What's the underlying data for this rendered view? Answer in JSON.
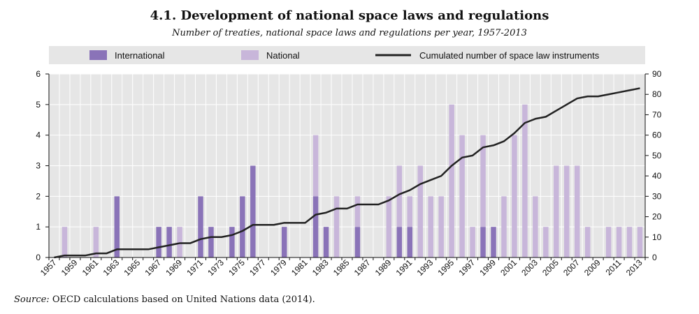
{
  "title": "4.1.  Development of national space laws and regulations",
  "subtitle": "Number of treaties, national space laws and regulations per year, 1957-2013",
  "source_label": "Source:",
  "source_text": "OECD calculations based on United Nations data (2014).",
  "colors": {
    "international": "#8a73b8",
    "national": "#c8b6da",
    "line": "#222222",
    "legend_bg": "#e6e6e6",
    "plot_bg": "#e6e6e6",
    "grid": "#ffffff"
  },
  "chart_data": {
    "type": "bar",
    "stacked": true,
    "categories": [
      1957,
      1958,
      1959,
      1960,
      1961,
      1962,
      1963,
      1964,
      1965,
      1966,
      1967,
      1968,
      1969,
      1970,
      1971,
      1972,
      1973,
      1974,
      1975,
      1976,
      1977,
      1978,
      1979,
      1980,
      1981,
      1982,
      1983,
      1984,
      1985,
      1986,
      1987,
      1988,
      1989,
      1990,
      1991,
      1992,
      1993,
      1994,
      1995,
      1996,
      1997,
      1998,
      1999,
      2000,
      2001,
      2002,
      2003,
      2004,
      2005,
      2006,
      2007,
      2008,
      2009,
      2010,
      2011,
      2012,
      2013
    ],
    "x_tick_labels": [
      "1957",
      "1959",
      "1961",
      "1963",
      "1965",
      "1967",
      "1969",
      "1971",
      "1973",
      "1975",
      "1977",
      "1979",
      "1981",
      "1983",
      "1985",
      "1987",
      "1989",
      "1991",
      "1993",
      "1995",
      "1997",
      "1999",
      "2001",
      "2003",
      "2005",
      "2007",
      "2009",
      "2011",
      "2013"
    ],
    "series": [
      {
        "name": "International",
        "axis": "left",
        "values": [
          0,
          0,
          0,
          0,
          0,
          0,
          2,
          0,
          0,
          0,
          1,
          1,
          0,
          0,
          2,
          1,
          0,
          1,
          2,
          3,
          0,
          0,
          1,
          0,
          0,
          2,
          1,
          0,
          0,
          1,
          0,
          0,
          0,
          1,
          1,
          0,
          0,
          0,
          0,
          0,
          0,
          1,
          1,
          0,
          0,
          0,
          0,
          0,
          0,
          0,
          0,
          0,
          0,
          0,
          0,
          0,
          0
        ]
      },
      {
        "name": "National",
        "axis": "left",
        "values": [
          0,
          1,
          0,
          0,
          1,
          0,
          0,
          0,
          0,
          0,
          0,
          0,
          1,
          0,
          0,
          0,
          0,
          0,
          0,
          0,
          0,
          0,
          0,
          0,
          0,
          2,
          0,
          2,
          0,
          1,
          0,
          0,
          2,
          2,
          1,
          3,
          2,
          2,
          5,
          4,
          1,
          3,
          0,
          2,
          4,
          5,
          2,
          1,
          3,
          3,
          3,
          1,
          0,
          1,
          1,
          1,
          1
        ]
      },
      {
        "name": "Cumulated number of space law instruments",
        "type": "line",
        "axis": "right",
        "values": [
          0,
          1,
          1,
          1,
          2,
          2,
          4,
          4,
          4,
          4,
          5,
          6,
          7,
          7,
          9,
          10,
          10,
          11,
          13,
          16,
          16,
          16,
          17,
          17,
          17,
          21,
          22,
          24,
          24,
          26,
          26,
          26,
          28,
          31,
          33,
          36,
          38,
          40,
          45,
          49,
          50,
          54,
          55,
          57,
          61,
          66,
          68,
          69,
          72,
          75,
          78,
          79,
          79,
          80,
          81,
          82,
          83
        ]
      }
    ],
    "y_left": {
      "min": 0,
      "max": 6,
      "ticks": [
        0,
        1,
        2,
        3,
        4,
        5,
        6
      ]
    },
    "y_right": {
      "min": 0,
      "max": 90,
      "ticks": [
        0,
        10,
        20,
        30,
        40,
        50,
        60,
        70,
        80,
        90
      ]
    },
    "legend_position": "top",
    "grid": true
  }
}
